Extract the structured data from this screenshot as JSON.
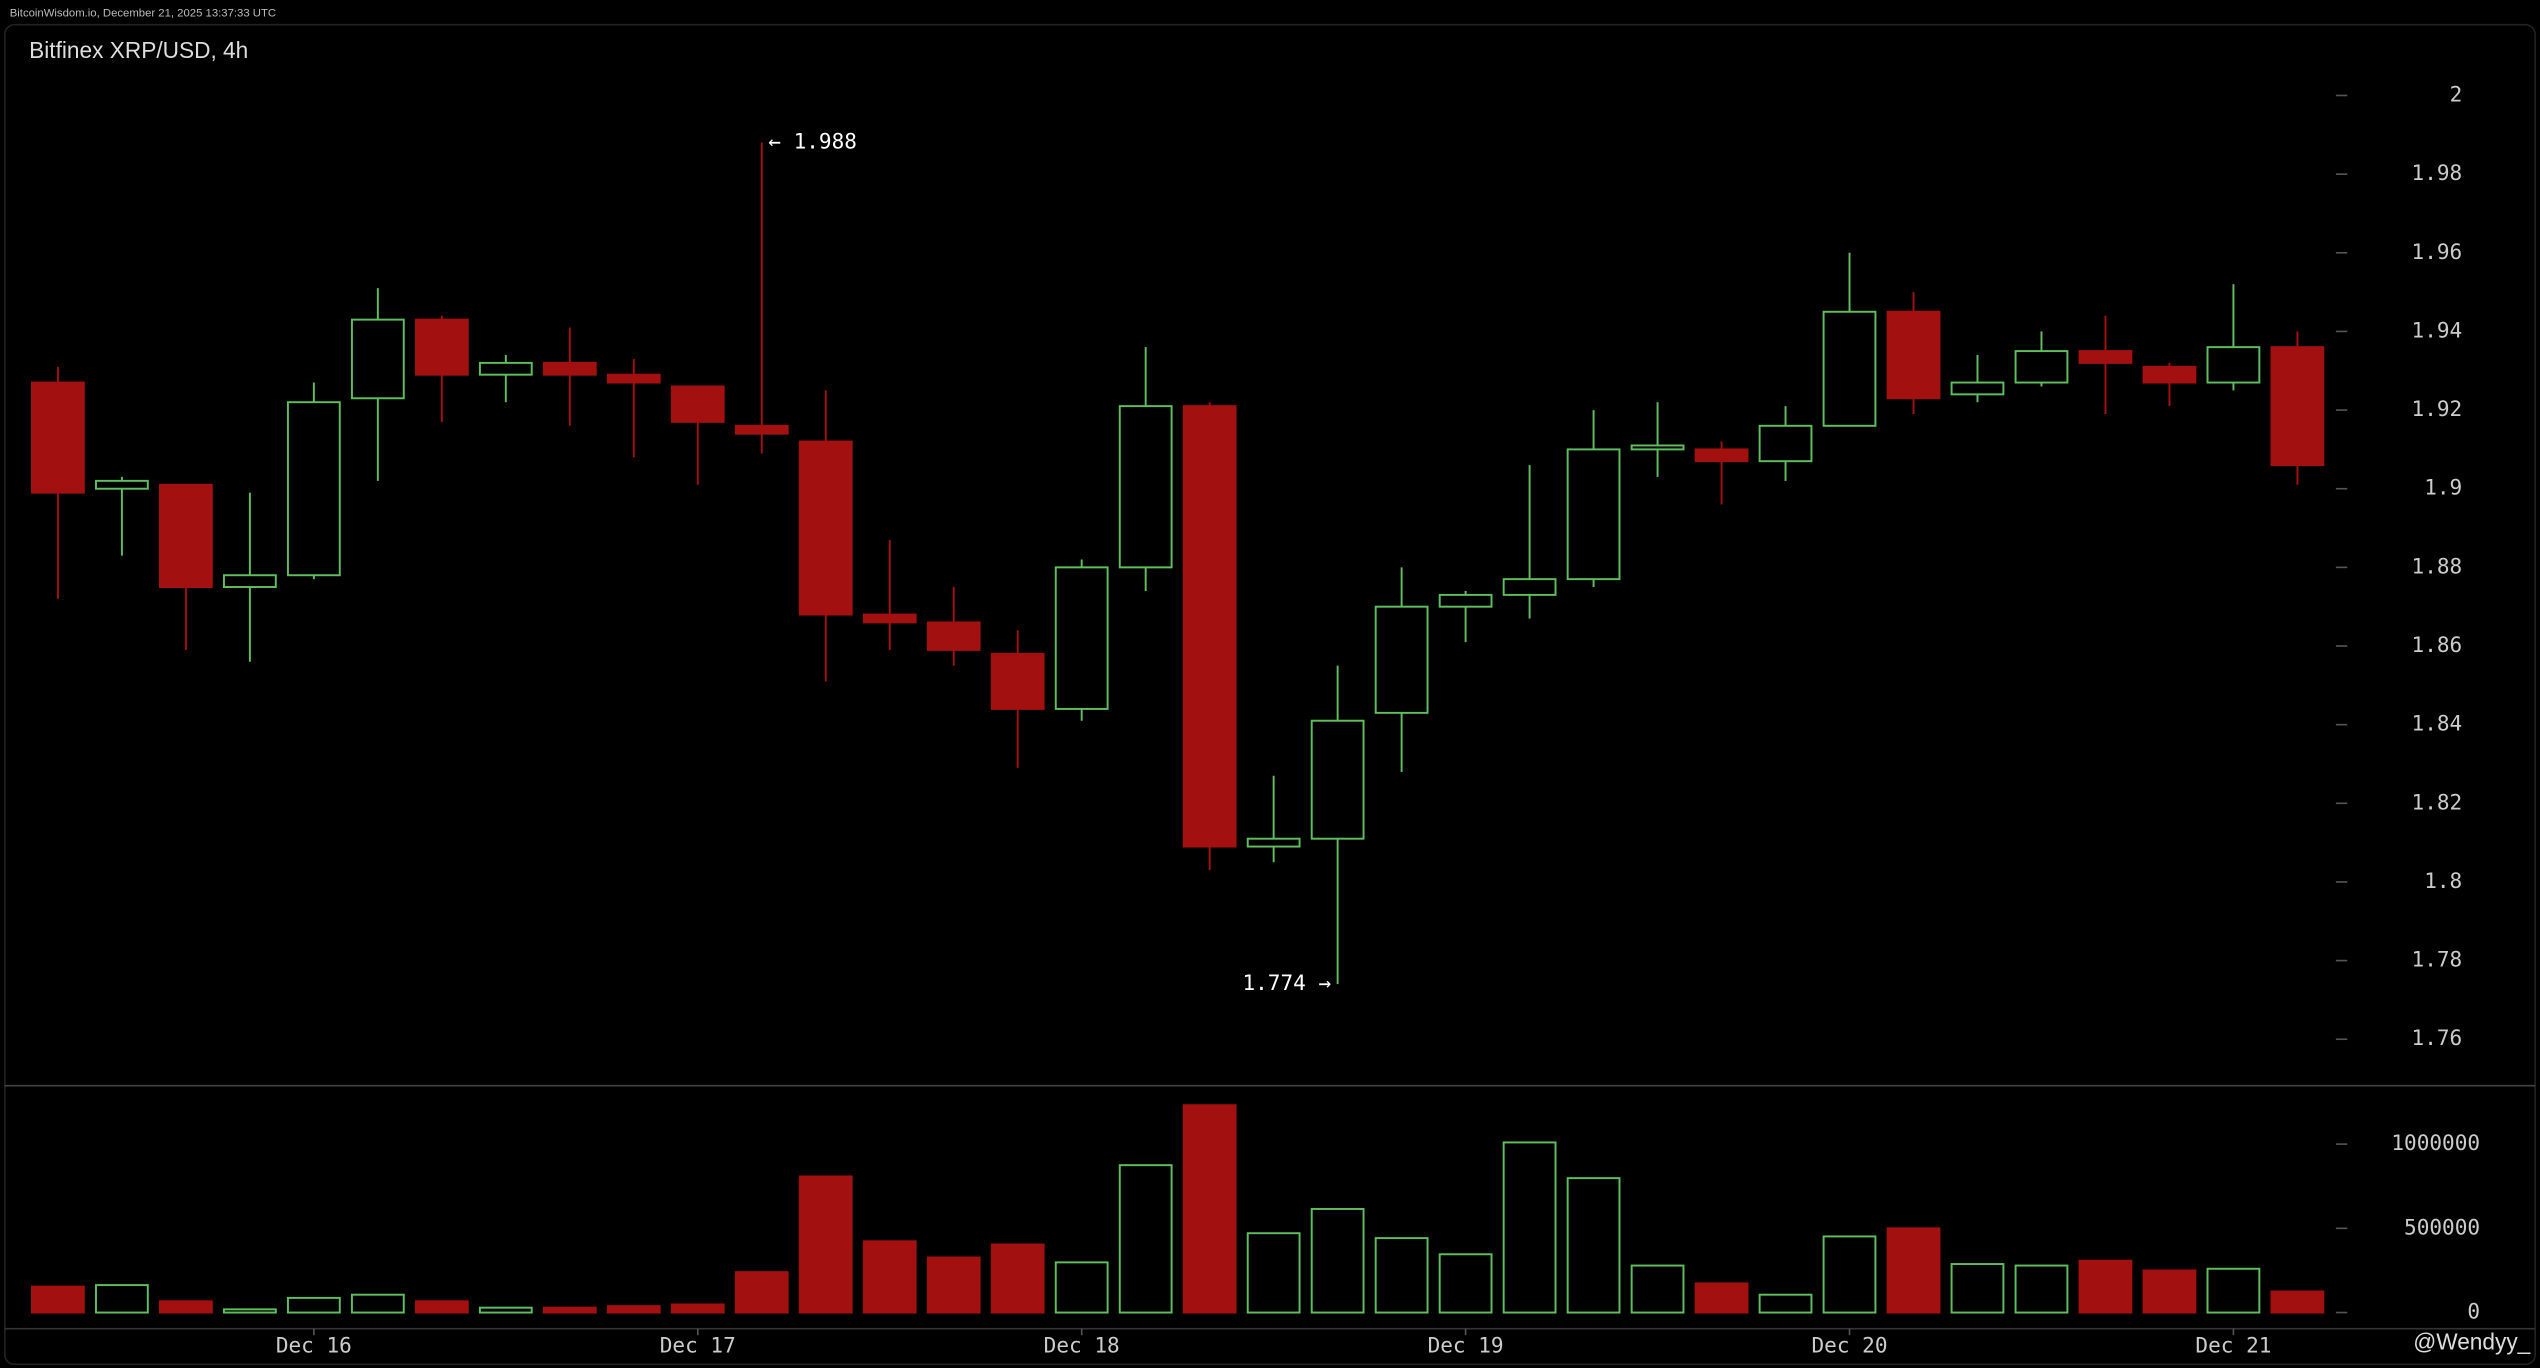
{
  "header": {
    "source": "BitcoinWisdom.io, December 21, 2025 13:37:33 UTC"
  },
  "watermark": "@Wendyy_",
  "chart_data": [
    {
      "type": "candlestick",
      "title": "Bitfinex XRP/USD, 4h",
      "categories": [
        null,
        null,
        null,
        null,
        "Dec 16",
        null,
        null,
        null,
        null,
        null,
        "Dec 17",
        null,
        null,
        null,
        null,
        null,
        "Dec 18",
        null,
        null,
        null,
        null,
        null,
        "Dec 19",
        null,
        null,
        null,
        null,
        null,
        "Dec 20",
        null,
        null,
        null,
        null,
        null,
        "Dec 21",
        null
      ],
      "open": [
        1.927,
        1.9,
        1.901,
        1.875,
        1.878,
        1.923,
        1.943,
        1.929,
        1.932,
        1.929,
        1.926,
        1.916,
        1.912,
        1.868,
        1.866,
        1.858,
        1.844,
        1.88,
        1.921,
        1.809,
        1.811,
        1.843,
        1.87,
        1.873,
        1.877,
        1.91,
        1.91,
        1.907,
        1.916,
        1.945,
        1.924,
        1.927,
        1.935,
        1.931,
        1.927,
        1.936
      ],
      "high": [
        1.931,
        1.903,
        1.901,
        1.899,
        1.927,
        1.951,
        1.944,
        1.934,
        1.941,
        1.933,
        1.926,
        1.988,
        1.925,
        1.887,
        1.875,
        1.864,
        1.882,
        1.936,
        1.922,
        1.827,
        1.855,
        1.88,
        1.874,
        1.906,
        1.92,
        1.922,
        1.912,
        1.921,
        1.96,
        1.95,
        1.934,
        1.94,
        1.944,
        1.932,
        1.952,
        1.94
      ],
      "low": [
        1.872,
        1.883,
        1.859,
        1.856,
        1.877,
        1.902,
        1.917,
        1.922,
        1.916,
        1.908,
        1.901,
        1.909,
        1.851,
        1.859,
        1.855,
        1.829,
        1.841,
        1.874,
        1.803,
        1.805,
        1.774,
        1.828,
        1.861,
        1.867,
        1.875,
        1.903,
        1.896,
        1.902,
        1.916,
        1.919,
        1.922,
        1.926,
        1.919,
        1.921,
        1.925,
        1.901
      ],
      "close": [
        1.899,
        1.902,
        1.875,
        1.878,
        1.922,
        1.943,
        1.929,
        1.932,
        1.929,
        1.927,
        1.917,
        1.914,
        1.868,
        1.866,
        1.859,
        1.844,
        1.88,
        1.921,
        1.809,
        1.811,
        1.841,
        1.87,
        1.873,
        1.877,
        1.91,
        1.911,
        1.907,
        1.916,
        1.945,
        1.923,
        1.927,
        1.935,
        1.932,
        1.927,
        1.936,
        1.906
      ],
      "up_color": "#5fbf5f",
      "down_color": "#a31010",
      "ylim": [
        1.749,
        2.018
      ],
      "yticks": [
        2,
        1.98,
        1.96,
        1.94,
        1.92,
        1.9,
        1.88,
        1.86,
        1.84,
        1.82,
        1.8,
        1.78,
        1.76
      ],
      "annotations": [
        {
          "label": "← 1.988",
          "value": 1.988,
          "at": "high"
        },
        {
          "label": "1.774 →",
          "value": 1.774,
          "at": "low"
        }
      ]
    },
    {
      "type": "volume",
      "values": [
        154000,
        163000,
        67000,
        19000,
        87000,
        106000,
        67000,
        29000,
        29000,
        38000,
        48000,
        240000,
        808000,
        423000,
        327000,
        404000,
        298000,
        875000,
        1231000,
        471000,
        615000,
        442000,
        346000,
        1010000,
        798000,
        279000,
        173000,
        106000,
        452000,
        500000,
        288000,
        279000,
        308000,
        250000,
        260000,
        125000
      ],
      "up_color": "#5fbf5f",
      "down_color": "#a31010",
      "ylim": [
        -96000,
        1337000
      ],
      "yticks": [
        0,
        500000,
        1000000
      ]
    }
  ]
}
